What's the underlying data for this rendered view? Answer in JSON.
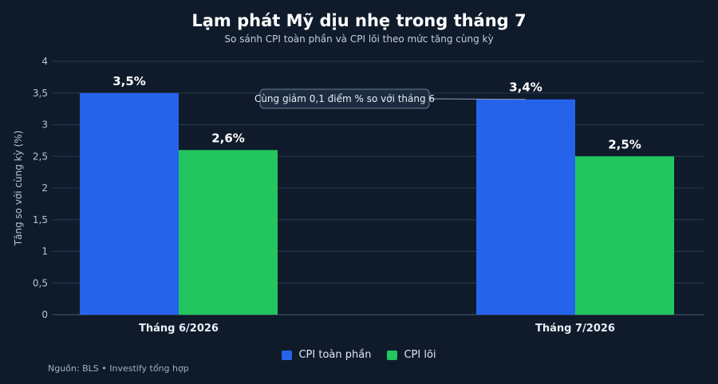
{
  "title": "Lạm phát Mỹ dịu nhẹ trong tháng 7",
  "subtitle": "So sánh CPI toàn phần và CPI lõi theo mức tăng cùng kỳ",
  "source": "Nguồn: BLS • Investify tổng hợp",
  "annotation": "Cùng giảm 0,1 điểm % so với tháng 6",
  "colors": {
    "background": "#0f1b2b",
    "cpi_headline": "#2563eb",
    "cpi_core": "#22c55e",
    "grid": "#2a3a4f"
  },
  "chart_data": {
    "type": "bar",
    "categories": [
      "Tháng 6/2026",
      "Tháng 7/2026"
    ],
    "series": [
      {
        "name": "CPI toàn phần",
        "values": [
          3.5,
          3.4
        ],
        "labels": [
          "3,5%",
          "3,4%"
        ]
      },
      {
        "name": "CPI lõi",
        "values": [
          2.6,
          2.5
        ],
        "labels": [
          "2,6%",
          "2,5%"
        ]
      }
    ],
    "ylabel": "Tăng so với cùng kỳ (%)",
    "ylim": [
      0,
      4
    ],
    "yticks": [
      "0",
      "0,5",
      "1",
      "1,5",
      "2",
      "2,5",
      "3",
      "3,5",
      "4"
    ],
    "grid": true,
    "legend_position": "bottom-center"
  }
}
